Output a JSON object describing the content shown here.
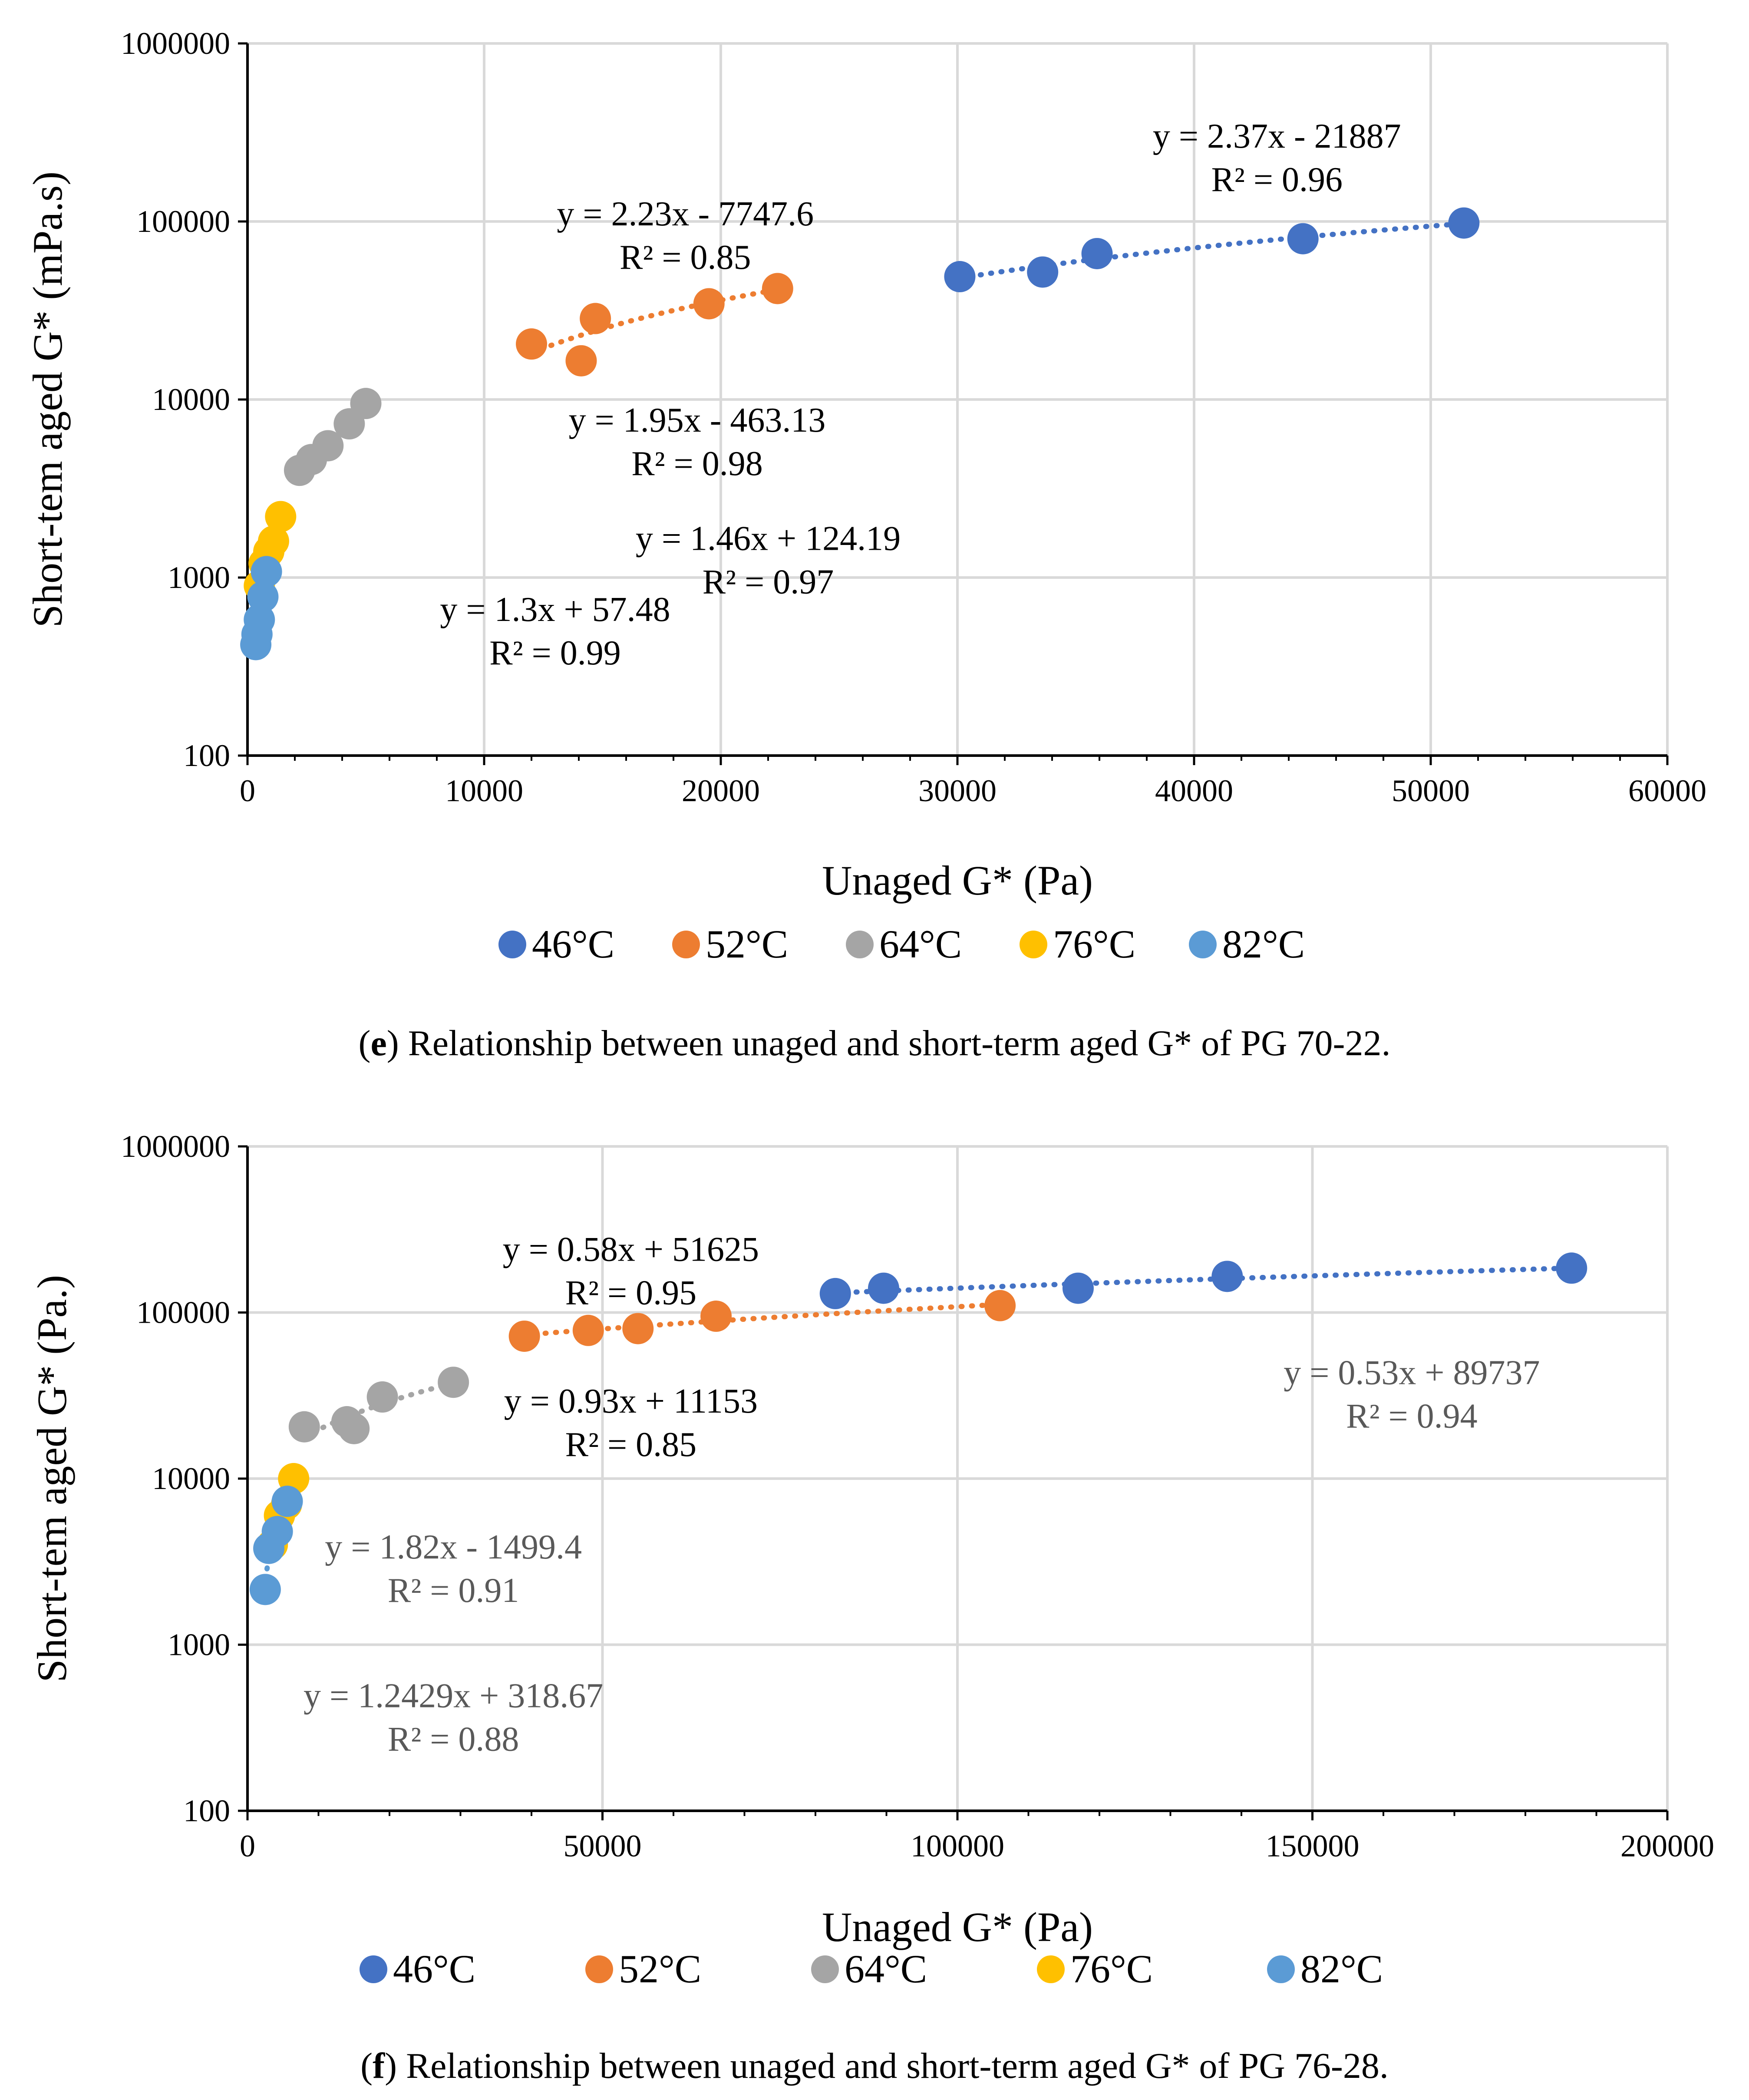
{
  "chart_data": [
    {
      "type": "scatter",
      "id": "e",
      "xlabel": "Unaged G* (Pa)",
      "ylabel": "Short-tem aged G* (mPa.s)",
      "x_ticks": [
        "0",
        "10000",
        "20000",
        "30000",
        "40000",
        "50000",
        "60000"
      ],
      "y_ticks": [
        "100",
        "1000",
        "10000",
        "100000",
        "1000000"
      ],
      "xlim": [
        0,
        60000
      ],
      "ylim": [
        100,
        1000000
      ],
      "y_scale": "log",
      "grid": true,
      "legend_position": "bottom",
      "series": [
        {
          "name": "46°C",
          "color": "#4472c4",
          "trendline": true,
          "x": [
            30100,
            33600,
            35900,
            44600,
            51400
          ],
          "y": [
            49000,
            52000,
            66000,
            80000,
            98000
          ]
        },
        {
          "name": "52°C",
          "color": "#ed7d31",
          "trendline": true,
          "x": [
            12000,
            14100,
            14700,
            19500,
            22400
          ],
          "y": [
            20500,
            16500,
            28500,
            34500,
            42000
          ]
        },
        {
          "name": "64°C",
          "color": "#a5a5a5",
          "trendline": true,
          "x": [
            2200,
            2700,
            3400,
            4300,
            5000
          ],
          "y": [
            4000,
            4600,
            5500,
            7300,
            9500
          ]
        },
        {
          "name": "76°C",
          "color": "#ffc000",
          "trendline": true,
          "x": [
            500,
            700,
            900,
            1100,
            1400
          ],
          "y": [
            900,
            1200,
            1400,
            1600,
            2200
          ]
        },
        {
          "name": "82°C",
          "color": "#5b9bd5",
          "trendline": true,
          "x": [
            350,
            400,
            500,
            650,
            800
          ],
          "y": [
            420,
            480,
            580,
            780,
            1080
          ]
        }
      ],
      "annotations": [
        {
          "series": "46°C",
          "eq": "y = 2.37x - 21887",
          "r2": "R² = 0.96",
          "color": "#000000",
          "x": 43500,
          "y": 260000
        },
        {
          "series": "52°C",
          "eq": "y = 2.23x - 7747.6",
          "r2": "R² = 0.85",
          "color": "#000000",
          "x": 18500,
          "y": 95000
        },
        {
          "series": "64°C",
          "eq": "y = 1.95x - 463.13",
          "r2": "R² = 0.98",
          "color": "#000000",
          "x": 19000,
          "y": 6600
        },
        {
          "series": "76°C",
          "eq": "y = 1.46x + 124.19",
          "r2": "R² = 0.97",
          "color": "#000000",
          "x": 22000,
          "y": 1430
        },
        {
          "series": "82°C",
          "eq": "y = 1.3x + 57.48",
          "r2": "R² = 0.99",
          "color": "#000000",
          "x": 13000,
          "y": 570
        }
      ],
      "caption_label": "e",
      "caption_text": ") Relationship between unaged and short-term aged G* of PG 70-22."
    },
    {
      "type": "scatter",
      "id": "f",
      "xlabel": "Unaged G* (Pa)",
      "ylabel": "Short-tem aged G* (Pa.)",
      "x_ticks": [
        "0",
        "50000",
        "100000",
        "150000",
        "200000"
      ],
      "y_ticks": [
        "100",
        "1000",
        "10000",
        "100000",
        "1000000"
      ],
      "xlim": [
        0,
        200000
      ],
      "ylim": [
        100,
        1000000
      ],
      "y_scale": "log",
      "grid": true,
      "legend_position": "bottom",
      "series": [
        {
          "name": "46°C",
          "color": "#4472c4",
          "trendline": true,
          "x": [
            82800,
            89600,
            117000,
            138000,
            186500
          ],
          "y": [
            130000,
            140000,
            140000,
            165000,
            185000
          ]
        },
        {
          "name": "52°C",
          "color": "#ed7d31",
          "trendline": true,
          "x": [
            39000,
            48000,
            55000,
            66000,
            106000
          ],
          "y": [
            72000,
            78000,
            80000,
            95000,
            110000
          ]
        },
        {
          "name": "64°C",
          "color": "#a5a5a5",
          "trendline": true,
          "x": [
            8000,
            14000,
            15000,
            19000,
            29000
          ],
          "y": [
            20500,
            22000,
            20000,
            31000,
            38000
          ]
        },
        {
          "name": "76°C",
          "color": "#ffc000",
          "trendline": true,
          "x": [
            3500,
            4500,
            5500,
            6500
          ],
          "y": [
            4000,
            6000,
            7000,
            10000
          ]
        },
        {
          "name": "82°C",
          "color": "#5b9bd5",
          "trendline": true,
          "x": [
            2500,
            3000,
            4200,
            5600
          ],
          "y": [
            2150,
            3800,
            4800,
            7300
          ]
        }
      ],
      "annotations": [
        {
          "series": "52°C",
          "eq": "y = 0.58x + 51625",
          "r2": "R² = 0.95",
          "color": "#000000",
          "x": 54000,
          "y": 205000
        },
        {
          "series": "46°C",
          "eq": "y = 0.53x + 89737",
          "r2": "R² = 0.94",
          "color": "#595959",
          "x": 164000,
          "y": 37000
        },
        {
          "series": "64°C",
          "eq": "y = 0.93x + 11153",
          "r2": "R² = 0.85",
          "color": "#000000",
          "x": 54000,
          "y": 25000
        },
        {
          "series": "76°C",
          "eq": "y = 1.82x - 1499.4",
          "r2": "R² = 0.91",
          "color": "#595959",
          "x": 29000,
          "y": 3300
        },
        {
          "series": "82°C",
          "eq": "y = 1.2429x + 318.67",
          "r2": "R² = 0.88",
          "color": "#595959",
          "x": 29000,
          "y": 420
        }
      ],
      "caption_label": "f",
      "caption_text": ") Relationship between unaged and short-term aged G* of PG 76-28."
    }
  ]
}
